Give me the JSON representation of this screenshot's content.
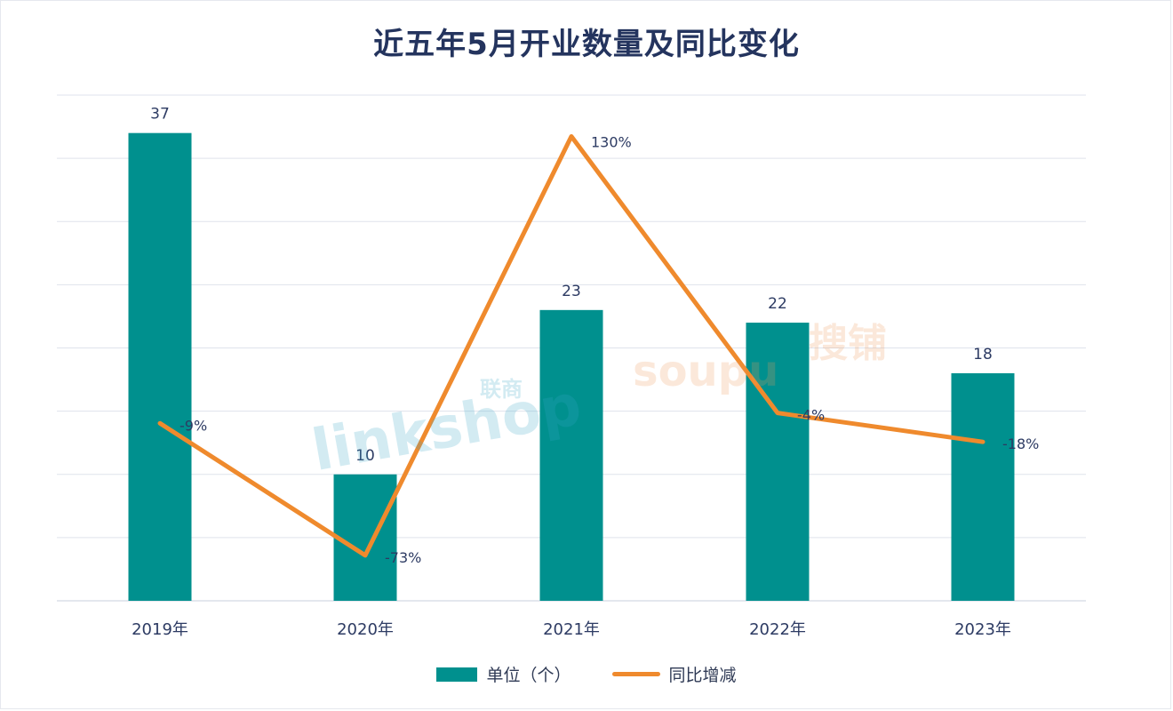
{
  "chart_data": {
    "type": "bar",
    "title": "近五年5月开业数量及同比变化",
    "categories": [
      "2019年",
      "2020年",
      "2021年",
      "2022年",
      "2023年"
    ],
    "series": [
      {
        "name": "单位（个）",
        "kind": "bar",
        "values": [
          37,
          10,
          23,
          22,
          18
        ],
        "value_labels": [
          "37",
          "10",
          "23",
          "22",
          "18"
        ],
        "color": "#00908e"
      },
      {
        "name": "同比增减",
        "kind": "line",
        "values": [
          -9,
          -73,
          130,
          -4,
          -18
        ],
        "value_labels": [
          "-9%",
          "-73%",
          "130%",
          "-4%",
          "-18%"
        ],
        "color": "#ef8a2d"
      }
    ],
    "ylim": [
      0,
      40
    ],
    "y2lim": [
      -95,
      150
    ],
    "grid": true,
    "legend_position": "bottom"
  },
  "watermarks": {
    "left": {
      "brand": "linkshop",
      "subtitle": "联商"
    },
    "right": {
      "brand": "soupu",
      "subtitle": "搜铺"
    }
  }
}
